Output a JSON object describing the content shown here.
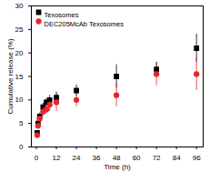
{
  "chart_data": {
    "type": "scatter",
    "x_label": "Time (h)",
    "y_label": "Cumulative release (%)",
    "x": [
      0.5,
      1,
      2,
      4,
      6,
      8,
      12,
      24,
      48,
      72,
      96
    ],
    "series": [
      {
        "name": "Texosomes",
        "color": "#000000",
        "marker": "square",
        "values": [
          3,
          5,
          6.5,
          8.5,
          9.5,
          10,
          10.5,
          12,
          15,
          16.5,
          21
        ],
        "errors": [
          0.5,
          0.5,
          0.7,
          0.8,
          0.8,
          1,
          1.2,
          1.2,
          2.5,
          1.5,
          3
        ]
      },
      {
        "name": "DEC205McAb Texosomes",
        "color": "#e8262a",
        "marker": "circle",
        "values": [
          2.5,
          4.5,
          6,
          7.5,
          8,
          9,
          9.5,
          10,
          11,
          15.5,
          15.5
        ],
        "errors": [
          0.5,
          0.5,
          0.8,
          1,
          1,
          1.5,
          2,
          1.5,
          2.5,
          2.5,
          3.5
        ]
      }
    ],
    "xlim": [
      -3,
      100
    ],
    "xticks": [
      0,
      12,
      24,
      36,
      48,
      60,
      72,
      84,
      96
    ],
    "ylim": [
      0,
      30
    ],
    "yticks": [
      0,
      5,
      10,
      15,
      20,
      25,
      30
    ],
    "legend": "top-left"
  }
}
